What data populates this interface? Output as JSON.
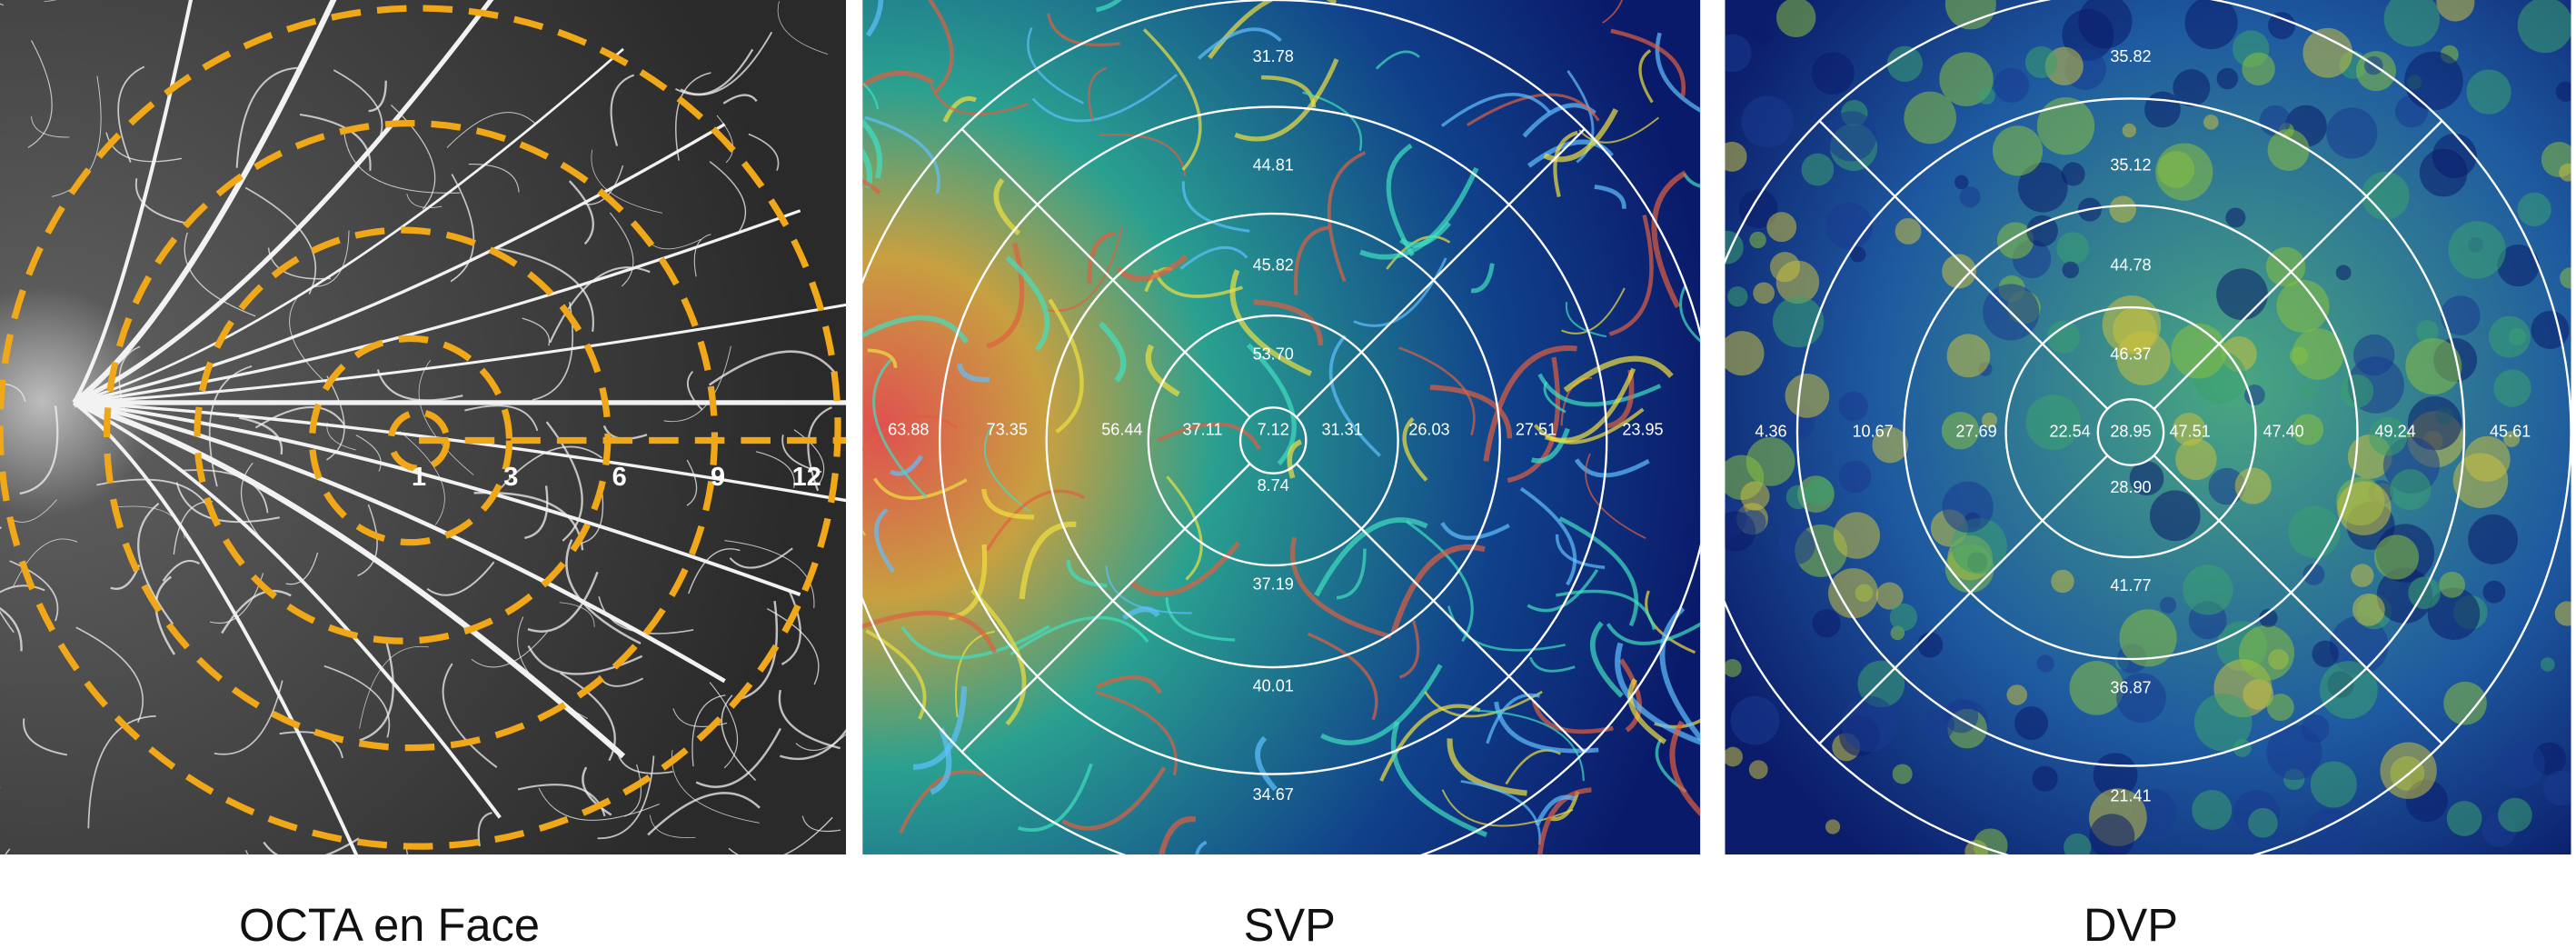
{
  "panels": [
    {
      "caption": "OCTA en Face",
      "labels": [
        "1",
        "3",
        "6",
        "9",
        "12"
      ]
    },
    {
      "caption": "SVP",
      "labels": [
        "31.78",
        "44.81",
        "45.82",
        "53.70",
        "7.12",
        "63.88",
        "73.35",
        "56.44",
        "37.11",
        "31.31",
        "26.03",
        "27.51",
        "23.95",
        "8.74",
        "37.19",
        "40.01",
        "34.67"
      ]
    },
    {
      "caption": "DVP",
      "labels": [
        "35.82",
        "35.12",
        "44.78",
        "46.37",
        "28.95",
        "4.36",
        "10.67",
        "27.69",
        "22.54",
        "47.51",
        "47.40",
        "49.24",
        "45.61",
        "28.90",
        "41.77",
        "36.87",
        "21.41"
      ]
    }
  ]
}
